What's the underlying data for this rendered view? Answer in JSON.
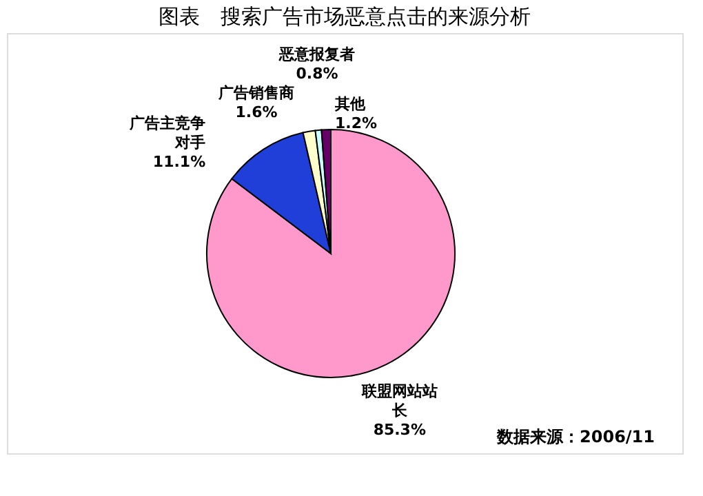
{
  "chart_data": {
    "type": "pie",
    "title": "图表　搜索广告市场恶意点击的来源分析",
    "categories": [
      "联盟网站站长",
      "广告主竞争对手",
      "广告销售商",
      "恶意报复者",
      "其他"
    ],
    "values": [
      85.3,
      11.1,
      1.6,
      0.8,
      1.2
    ],
    "value_labels": [
      "85.3%",
      "11.1%",
      "1.6%",
      "0.8%",
      "1.2%"
    ],
    "colors": [
      "#ff99cc",
      "#1f3fd8",
      "#ffffcc",
      "#ccffff",
      "#660066"
    ],
    "legend": false,
    "annotations": [
      "数据来源：2006/11"
    ]
  }
}
